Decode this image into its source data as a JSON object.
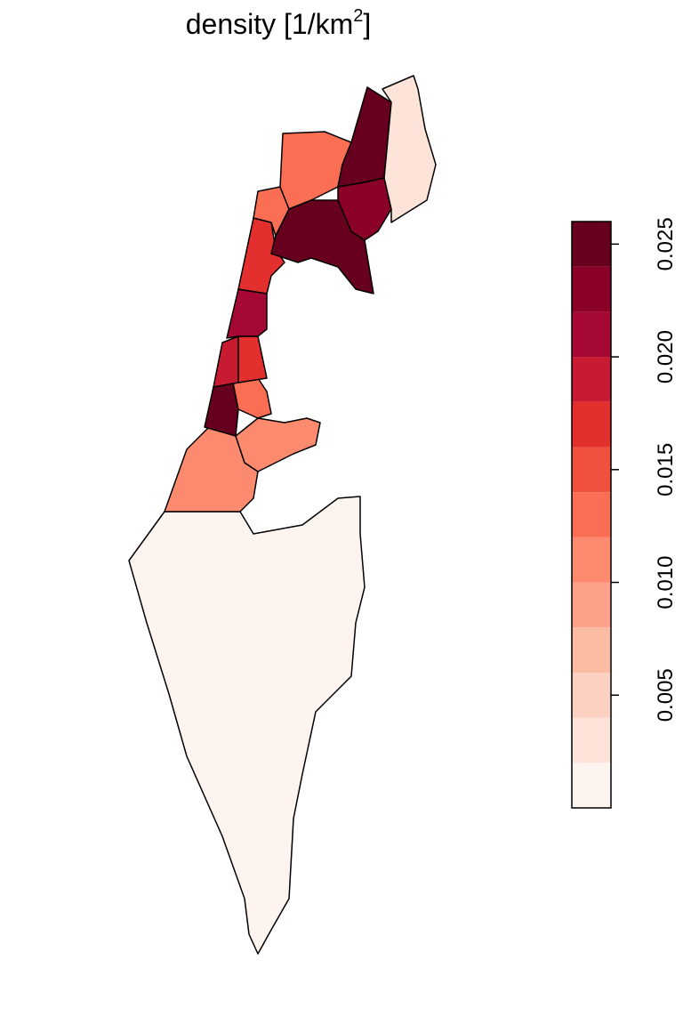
{
  "chart_data": {
    "type": "choropleth",
    "title": "density [1/km",
    "title_superscript": "2",
    "title_suffix": "]",
    "colorbar": {
      "breaks": [
        0,
        0.002,
        0.004,
        0.006,
        0.008,
        0.01,
        0.012,
        0.014,
        0.016,
        0.018,
        0.02,
        0.022,
        0.024,
        0.026
      ],
      "colors": [
        "#fdf4f0",
        "#fee3d9",
        "#fdd1c2",
        "#fcbba3",
        "#fca28a",
        "#fc8a6e",
        "#fa6e53",
        "#f0523f",
        "#e32f2e",
        "#c81a31",
        "#a50833",
        "#8b0027",
        "#67001f"
      ],
      "ticks": [
        0.005,
        {
          "value": 0.01,
          "label": "0.010"
        },
        0.015,
        {
          "value": 0.02,
          "label": "0.020"
        },
        0.025
      ]
    },
    "regions": [
      {
        "value": 0.0005
      },
      {
        "value": 0.011
      },
      {
        "value": 0.011
      },
      {
        "value": 0.025
      },
      {
        "value": 0.013
      },
      {
        "value": 0.019
      },
      {
        "value": 0.017
      },
      {
        "value": 0.021
      },
      {
        "value": 0.017
      },
      {
        "value": 0.012
      },
      {
        "value": 0.013
      },
      {
        "value": 0.025
      },
      {
        "value": 0.025
      },
      {
        "value": 0.023
      },
      {
        "value": 0.003
      }
    ]
  }
}
